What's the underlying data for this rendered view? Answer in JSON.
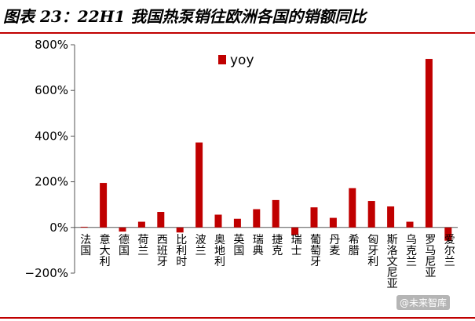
{
  "title": "图表 23：22H1 我国热泵销往欧洲各国的销额同比",
  "watermark": "@未来智库",
  "colors": {
    "bar": "#c00000",
    "accent": "#c00000",
    "axis": "#555555"
  },
  "chart_data": {
    "type": "bar",
    "title": "",
    "xlabel": "",
    "ylabel": "",
    "ylim": [
      -200,
      800
    ],
    "yticks": [
      -200,
      0,
      200,
      400,
      600,
      800
    ],
    "ytick_format": "percent",
    "grid": false,
    "legend": {
      "position": "top-center",
      "entries": [
        "yoy"
      ]
    },
    "categories": [
      "法国",
      "意大利",
      "德国",
      "荷兰",
      "西班牙",
      "比利时",
      "波兰",
      "奥地利",
      "英国",
      "瑞典",
      "捷克",
      "瑞士",
      "葡萄牙",
      "丹麦",
      "希腊",
      "匈牙利",
      "斯洛文尼亚",
      "乌克兰",
      "罗马尼亚",
      "爱尔兰"
    ],
    "series": [
      {
        "name": "yoy",
        "values": [
          3,
          195,
          -18,
          25,
          68,
          -22,
          372,
          56,
          38,
          80,
          120,
          -33,
          88,
          42,
          172,
          116,
          92,
          25,
          738,
          -58
        ]
      }
    ]
  }
}
